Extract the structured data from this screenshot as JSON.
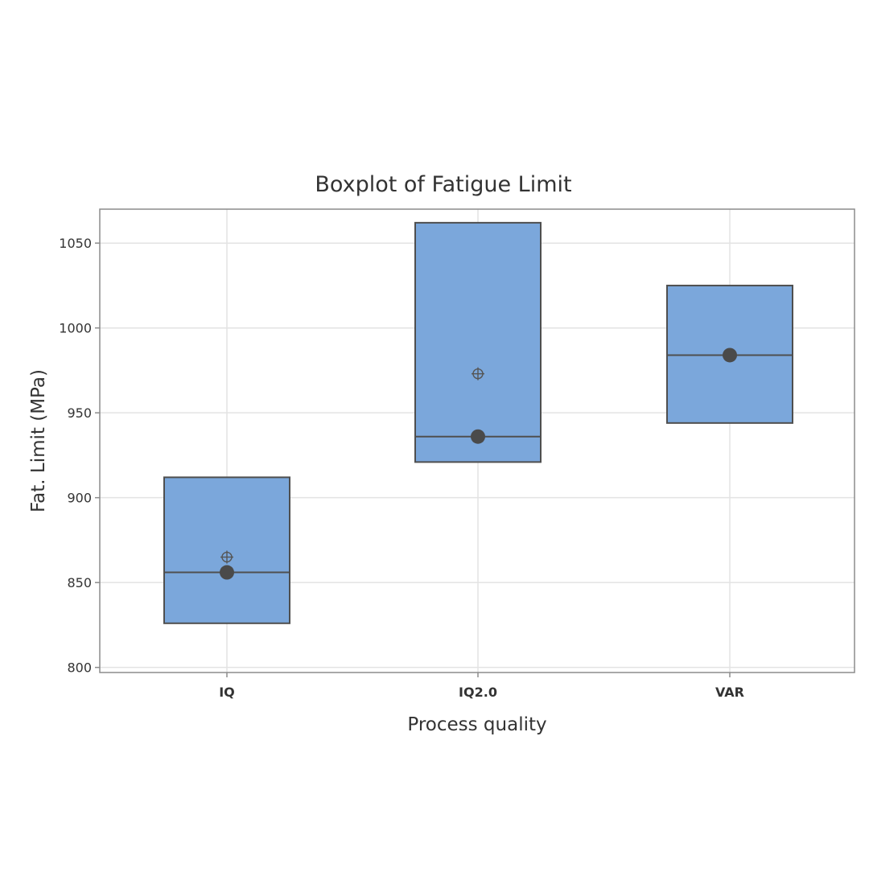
{
  "chart_data": {
    "type": "box",
    "title": "Boxplot of Fatigue Limit",
    "xlabel": "Process quality",
    "ylabel": "Fat. Limit (MPa)",
    "categories": [
      "IQ",
      "IQ2.0",
      "VAR"
    ],
    "ylim": [
      797,
      1070
    ],
    "yticks": [
      800,
      850,
      900,
      950,
      1000,
      1050
    ],
    "grid": true,
    "boxes": [
      {
        "category": "IQ",
        "q1": 826,
        "median": 856,
        "q3": 912,
        "mean": 865,
        "median_marker": 856
      },
      {
        "category": "IQ2.0",
        "q1": 921,
        "median": 936,
        "q3": 1062,
        "mean": 973,
        "median_marker": 936
      },
      {
        "category": "VAR",
        "q1": 944,
        "median": 984,
        "q3": 1025,
        "mean": null,
        "median_marker": 984
      }
    ],
    "colors": {
      "box_fill": "#7ba7db",
      "box_stroke": "#4f4f4f",
      "median_marker": "#4a4a4a",
      "grid": "#e3e3e3",
      "frame": "#8c8c8c",
      "text": "#333333"
    }
  }
}
